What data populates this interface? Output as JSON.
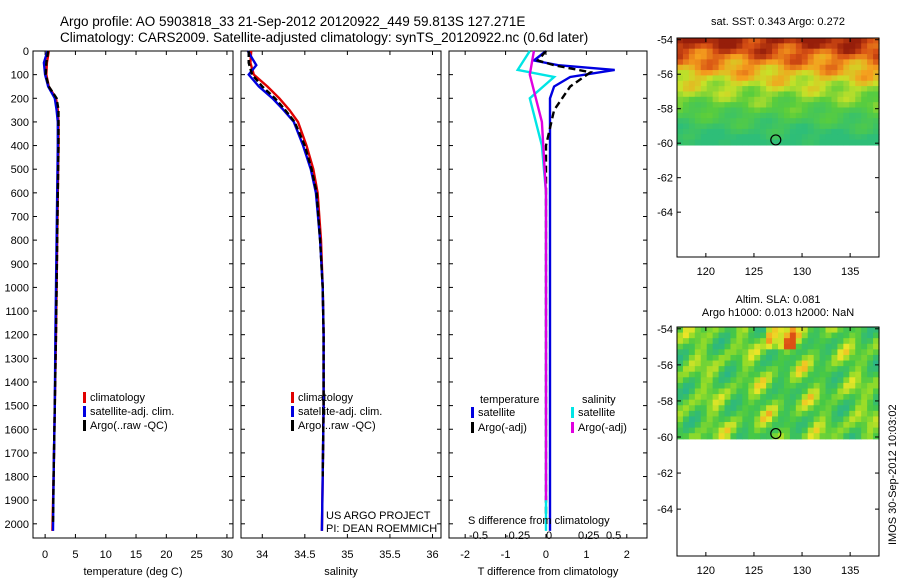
{
  "header": {
    "line1": "Argo profile: AO 5903818_33 21-Sep-2012 20120922_449 59.813S 127.271E",
    "line2": "Climatology: CARS2009. Satellite-adjusted climatology: synTS_20120922.nc (0.6d later)"
  },
  "stamp": "IMOS 30-Sep-2012 10:03:02",
  "credit": [
    "US ARGO PROJECT",
    "PI: DEAN ROEMMICH"
  ],
  "colors": {
    "climatology": "#e00000",
    "satellite": "#0000e0",
    "argo": "#000000",
    "sal_satellite": "#00e5e5",
    "sal_argo": "#e000e0"
  },
  "chart_data": [
    {
      "type": "line",
      "name": "temperature-panel",
      "xlabel": "temperature (deg C)",
      "xticks": [
        0,
        5,
        10,
        15,
        20,
        25,
        30
      ],
      "xlim": [
        -2,
        31
      ],
      "ylim": [
        2060,
        0
      ],
      "yticks": [
        0,
        100,
        200,
        300,
        400,
        500,
        600,
        700,
        800,
        900,
        1000,
        1100,
        1200,
        1300,
        1400,
        1500,
        1600,
        1700,
        1800,
        1900,
        2000
      ],
      "legend": [
        "climatology",
        "satellite-adj. clim.",
        "Argo(..raw -QC)"
      ],
      "series": [
        {
          "name": "climatology",
          "color": "#e00000",
          "dash": "",
          "x": [
            0.6,
            0.3,
            0.2,
            0.6,
            1.8,
            2.1,
            2.2,
            2.2,
            2.1,
            2.0,
            1.9,
            1.8,
            1.6,
            1.4,
            1.2
          ],
          "y": [
            0,
            50,
            100,
            150,
            200,
            250,
            300,
            400,
            600,
            800,
            1000,
            1200,
            1500,
            1800,
            2030
          ]
        },
        {
          "name": "satellite-adj. clim.",
          "color": "#0000e0",
          "dash": "",
          "x": [
            0.4,
            -0.2,
            0.0,
            0.5,
            1.6,
            1.9,
            2.1,
            2.1,
            2.0,
            1.9,
            1.8,
            1.7,
            1.6,
            1.4,
            1.3
          ],
          "y": [
            0,
            50,
            100,
            150,
            200,
            250,
            300,
            400,
            600,
            800,
            1000,
            1200,
            1500,
            1800,
            2030
          ]
        },
        {
          "name": "Argo(..raw -QC)",
          "color": "#000000",
          "dash": "6,3",
          "x": [
            0.5,
            0.2,
            0.1,
            0.6,
            1.9,
            2.2,
            2.2,
            2.2,
            2.1,
            2.0,
            1.9,
            1.8,
            1.6,
            1.4,
            1.3
          ],
          "y": [
            0,
            50,
            100,
            150,
            200,
            250,
            300,
            400,
            600,
            800,
            1000,
            1200,
            1500,
            1800,
            2000
          ]
        }
      ]
    },
    {
      "type": "line",
      "name": "salinity-panel",
      "xlabel": "salinity",
      "xticks": [
        34,
        34.5,
        35,
        35.5,
        36
      ],
      "xlim": [
        33.75,
        36.1
      ],
      "ylim": [
        2060,
        0
      ],
      "legend": [
        "climatology",
        "satellite-adj. clim.",
        "Argo(..raw -QC)"
      ],
      "series": [
        {
          "name": "climatology",
          "color": "#e00000",
          "dash": "",
          "x": [
            33.87,
            33.86,
            33.9,
            34.06,
            34.2,
            34.32,
            34.42,
            34.52,
            34.6,
            34.65,
            34.69,
            34.71,
            34.72,
            34.72,
            34.71,
            34.7
          ],
          "y": [
            0,
            50,
            100,
            150,
            200,
            250,
            300,
            400,
            500,
            600,
            800,
            1000,
            1200,
            1500,
            1800,
            2030
          ]
        },
        {
          "name": "satellite-adj. clim.",
          "color": "#0000e0",
          "dash": "",
          "x": [
            33.83,
            33.93,
            33.84,
            33.96,
            34.12,
            34.25,
            34.37,
            34.48,
            34.57,
            34.63,
            34.68,
            34.71,
            34.72,
            34.72,
            34.71,
            34.7
          ],
          "y": [
            0,
            60,
            100,
            150,
            200,
            250,
            300,
            400,
            500,
            600,
            800,
            1000,
            1200,
            1500,
            1800,
            2030
          ]
        },
        {
          "name": "Argo(..raw -QC)",
          "color": "#000000",
          "dash": "6,3",
          "x": [
            33.84,
            33.84,
            33.88,
            34.0,
            34.15,
            34.27,
            34.38,
            34.5,
            34.58,
            34.64,
            34.68,
            34.71,
            34.72,
            34.72,
            34.71
          ],
          "y": [
            0,
            50,
            100,
            150,
            200,
            250,
            300,
            400,
            500,
            600,
            800,
            1000,
            1200,
            1500,
            1800
          ]
        }
      ]
    },
    {
      "type": "line",
      "name": "difference-panel",
      "xlabel": "T difference from climatology",
      "xticks": [
        -2,
        -1,
        0,
        1,
        2
      ],
      "xlim": [
        -2.4,
        2.5
      ],
      "s_axis_label": "S difference from climatology",
      "s_ticks": [
        -0.5,
        -0.25,
        0,
        0.25,
        0.5
      ],
      "ylim": [
        2060,
        0
      ],
      "legend": {
        "temperature": "temperature",
        "salinity": "salinity",
        "items": [
          "satellite",
          "Argo(-adj)",
          "satellite",
          "Argo(-adj)"
        ]
      },
      "series": [
        {
          "name": "T satellite",
          "color": "#0000e0",
          "dash": "",
          "x": [
            0.0,
            -0.3,
            0.3,
            1.7,
            0.6,
            0.2,
            0.1,
            0.1,
            0.1,
            0.1,
            0.1,
            0.1
          ],
          "y": [
            0,
            40,
            60,
            80,
            110,
            150,
            200,
            400,
            800,
            1200,
            1600,
            2030
          ]
        },
        {
          "name": "T Argo(-adj)",
          "color": "#000000",
          "dash": "7,4",
          "x": [
            0.0,
            -0.2,
            0.2,
            1.1,
            0.6,
            0.2,
            0.0,
            0.0,
            0.0,
            0.0,
            0.0,
            0.0
          ],
          "y": [
            0,
            40,
            60,
            90,
            150,
            250,
            400,
            600,
            900,
            1300,
            1700,
            2000
          ]
        },
        {
          "name": "S satellite",
          "color": "#00e5e5",
          "dash": "",
          "x": [
            -0.4,
            -0.7,
            0.2,
            -0.4,
            -0.1,
            0.0,
            0.0,
            0.0,
            0.0,
            0.0,
            0.0
          ],
          "y": [
            0,
            80,
            110,
            200,
            400,
            600,
            800,
            1200,
            1600,
            1900,
            2030
          ]
        },
        {
          "name": "S Argo(-adj)",
          "color": "#e000e0",
          "dash": "",
          "x": [
            -0.3,
            -0.4,
            -0.1,
            0.0,
            0.0,
            0.0,
            0.0
          ],
          "y": [
            0,
            100,
            300,
            600,
            1000,
            1500,
            1900
          ]
        }
      ]
    },
    {
      "type": "heatmap",
      "name": "sst-map",
      "title": "sat. SST: 0.343 Argo: 0.272",
      "xticks": [
        120,
        125,
        130,
        135
      ],
      "yticks": [
        -54,
        -56,
        -58,
        -60,
        -62,
        -64
      ],
      "xlim": [
        117,
        138
      ],
      "ylim": [
        -66.6,
        -53.9
      ],
      "data_extent_lat": [
        -60.1,
        -53.9
      ],
      "marker": {
        "lon": 127.27,
        "lat": -59.81
      }
    },
    {
      "type": "heatmap",
      "name": "sla-map",
      "title": "Altim. SLA: 0.081",
      "subtitle": "Argo h1000: 0.013 h2000: NaN",
      "xticks": [
        120,
        125,
        130,
        135
      ],
      "yticks": [
        -54,
        -56,
        -58,
        -60,
        -62,
        -64
      ],
      "xlim": [
        117,
        138
      ],
      "ylim": [
        -66.6,
        -53.9
      ],
      "data_extent_lat": [
        -60.1,
        -53.9
      ],
      "marker": {
        "lon": 127.27,
        "lat": -59.81
      }
    }
  ]
}
